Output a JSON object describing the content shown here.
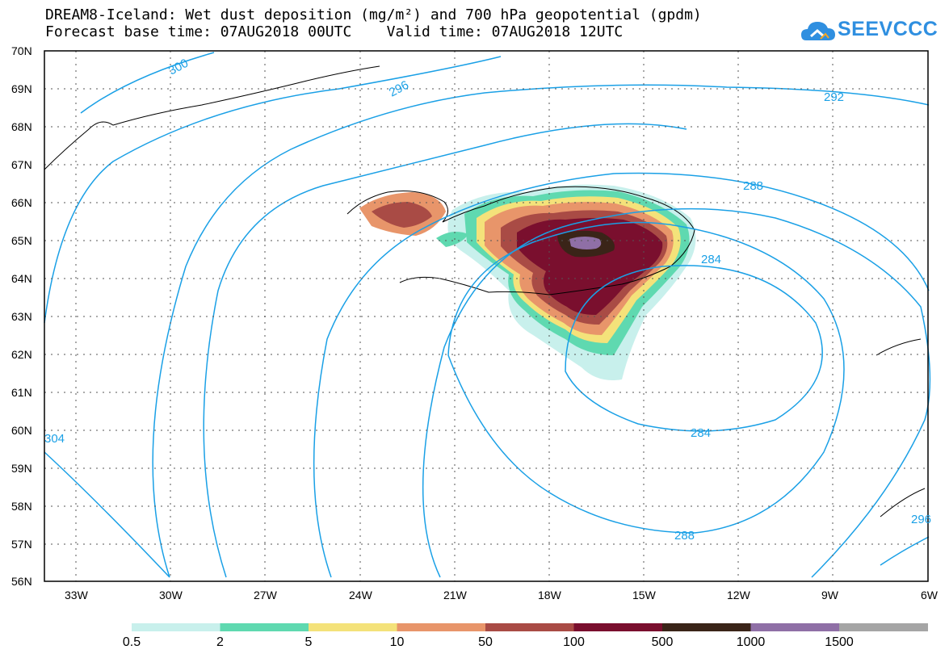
{
  "title": {
    "line1": "DREAM8-Iceland: Wet dust deposition (mg/m²) and 700 hPa geopotential (gpdm)",
    "line2": "Forecast base time: 07AUG2018 00UTC    Valid time: 07AUG2018 12UTC"
  },
  "logo": {
    "text": "SEEVCCC",
    "icon": "cloud-icon",
    "color": "#2f8fe0"
  },
  "axes": {
    "lat_labels": [
      "70N",
      "69N",
      "68N",
      "67N",
      "66N",
      "65N",
      "64N",
      "63N",
      "62N",
      "61N",
      "60N",
      "59N",
      "58N",
      "57N",
      "56N"
    ],
    "lon_labels": [
      "33W",
      "30W",
      "27W",
      "24W",
      "21W",
      "18W",
      "15W",
      "12W",
      "9W",
      "6W"
    ]
  },
  "contour_labels": [
    "300",
    "296",
    "292",
    "288",
    "284",
    "284",
    "288",
    "304",
    "296"
  ],
  "legend": {
    "labels": [
      "0.5",
      "2",
      "5",
      "10",
      "50",
      "100",
      "500",
      "1000",
      "1500"
    ],
    "colors": [
      "#c8f0ec",
      "#5fd9b0",
      "#f4e27a",
      "#e8956a",
      "#a94b45",
      "#7a0f2e",
      "#3a2418",
      "#8f6fa6",
      "#a5a5a5"
    ]
  }
}
